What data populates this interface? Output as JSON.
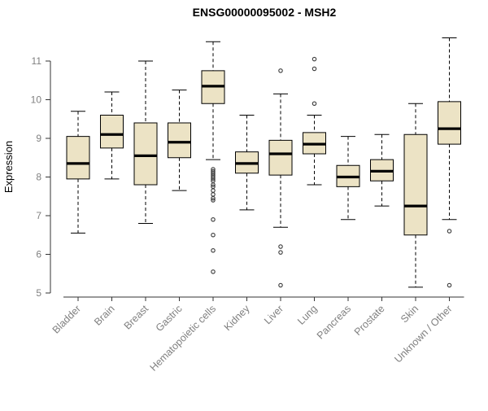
{
  "title": "ENSG00000095002 - MSH2",
  "chart_data": {
    "type": "boxplot",
    "title": "ENSG00000095002 - MSH2",
    "xlabel": "",
    "ylabel": "Expression",
    "ylim": [
      5,
      11.8
    ],
    "yticks": [
      5,
      6,
      7,
      8,
      9,
      10,
      11
    ],
    "grid": false,
    "legend": "none",
    "categories": [
      "Bladder",
      "Brain",
      "Breast",
      "Gastric",
      "Hematopoietic cells",
      "Kidney",
      "Liver",
      "Lung",
      "Pancreas",
      "Prostate",
      "Skin",
      "Unknown / Other"
    ],
    "series": [
      {
        "category": "Bladder",
        "low": 6.55,
        "q1": 7.95,
        "median": 8.35,
        "q3": 9.05,
        "high": 9.7,
        "outliers": []
      },
      {
        "category": "Brain",
        "low": 7.95,
        "q1": 8.75,
        "median": 9.1,
        "q3": 9.6,
        "high": 10.2,
        "outliers": []
      },
      {
        "category": "Breast",
        "low": 6.8,
        "q1": 7.8,
        "median": 8.55,
        "q3": 9.4,
        "high": 11.0,
        "outliers": []
      },
      {
        "category": "Gastric",
        "low": 7.65,
        "q1": 8.5,
        "median": 8.9,
        "q3": 9.4,
        "high": 10.25,
        "outliers": []
      },
      {
        "category": "Hematopoietic cells",
        "low": 8.45,
        "q1": 9.9,
        "median": 10.35,
        "q3": 10.75,
        "high": 11.5,
        "outliers": [
          8.2,
          8.15,
          8.1,
          8.05,
          8.0,
          7.95,
          7.9,
          7.8,
          7.75,
          7.65,
          7.55,
          7.45,
          7.4,
          6.9,
          6.5,
          6.1,
          5.55
        ]
      },
      {
        "category": "Kidney",
        "low": 7.15,
        "q1": 8.1,
        "median": 8.35,
        "q3": 8.65,
        "high": 9.6,
        "outliers": []
      },
      {
        "category": "Liver",
        "low": 6.7,
        "q1": 8.05,
        "median": 8.6,
        "q3": 8.95,
        "high": 10.15,
        "outliers": [
          10.75,
          6.2,
          6.05,
          5.2
        ]
      },
      {
        "category": "Lung",
        "low": 7.8,
        "q1": 8.6,
        "median": 8.85,
        "q3": 9.15,
        "high": 9.6,
        "outliers": [
          11.05,
          10.8,
          9.9
        ]
      },
      {
        "category": "Pancreas",
        "low": 6.9,
        "q1": 7.75,
        "median": 8.0,
        "q3": 8.3,
        "high": 9.05,
        "outliers": []
      },
      {
        "category": "Prostate",
        "low": 7.25,
        "q1": 7.9,
        "median": 8.15,
        "q3": 8.45,
        "high": 9.1,
        "outliers": []
      },
      {
        "category": "Skin",
        "low": 5.15,
        "q1": 6.5,
        "median": 7.25,
        "q3": 9.1,
        "high": 9.9,
        "outliers": []
      },
      {
        "category": "Unknown / Other",
        "low": 6.9,
        "q1": 8.85,
        "median": 9.25,
        "q3": 9.95,
        "high": 11.6,
        "outliers": [
          6.6,
          5.2
        ]
      }
    ],
    "colors": {
      "box_fill": "#ece3c5",
      "box_stroke": "#000000",
      "median": "#000000",
      "whisker": "#000000",
      "outlier": "#3a3a3a",
      "axis": "#333333",
      "tick_labels": "#808080",
      "title": "#000000"
    }
  }
}
